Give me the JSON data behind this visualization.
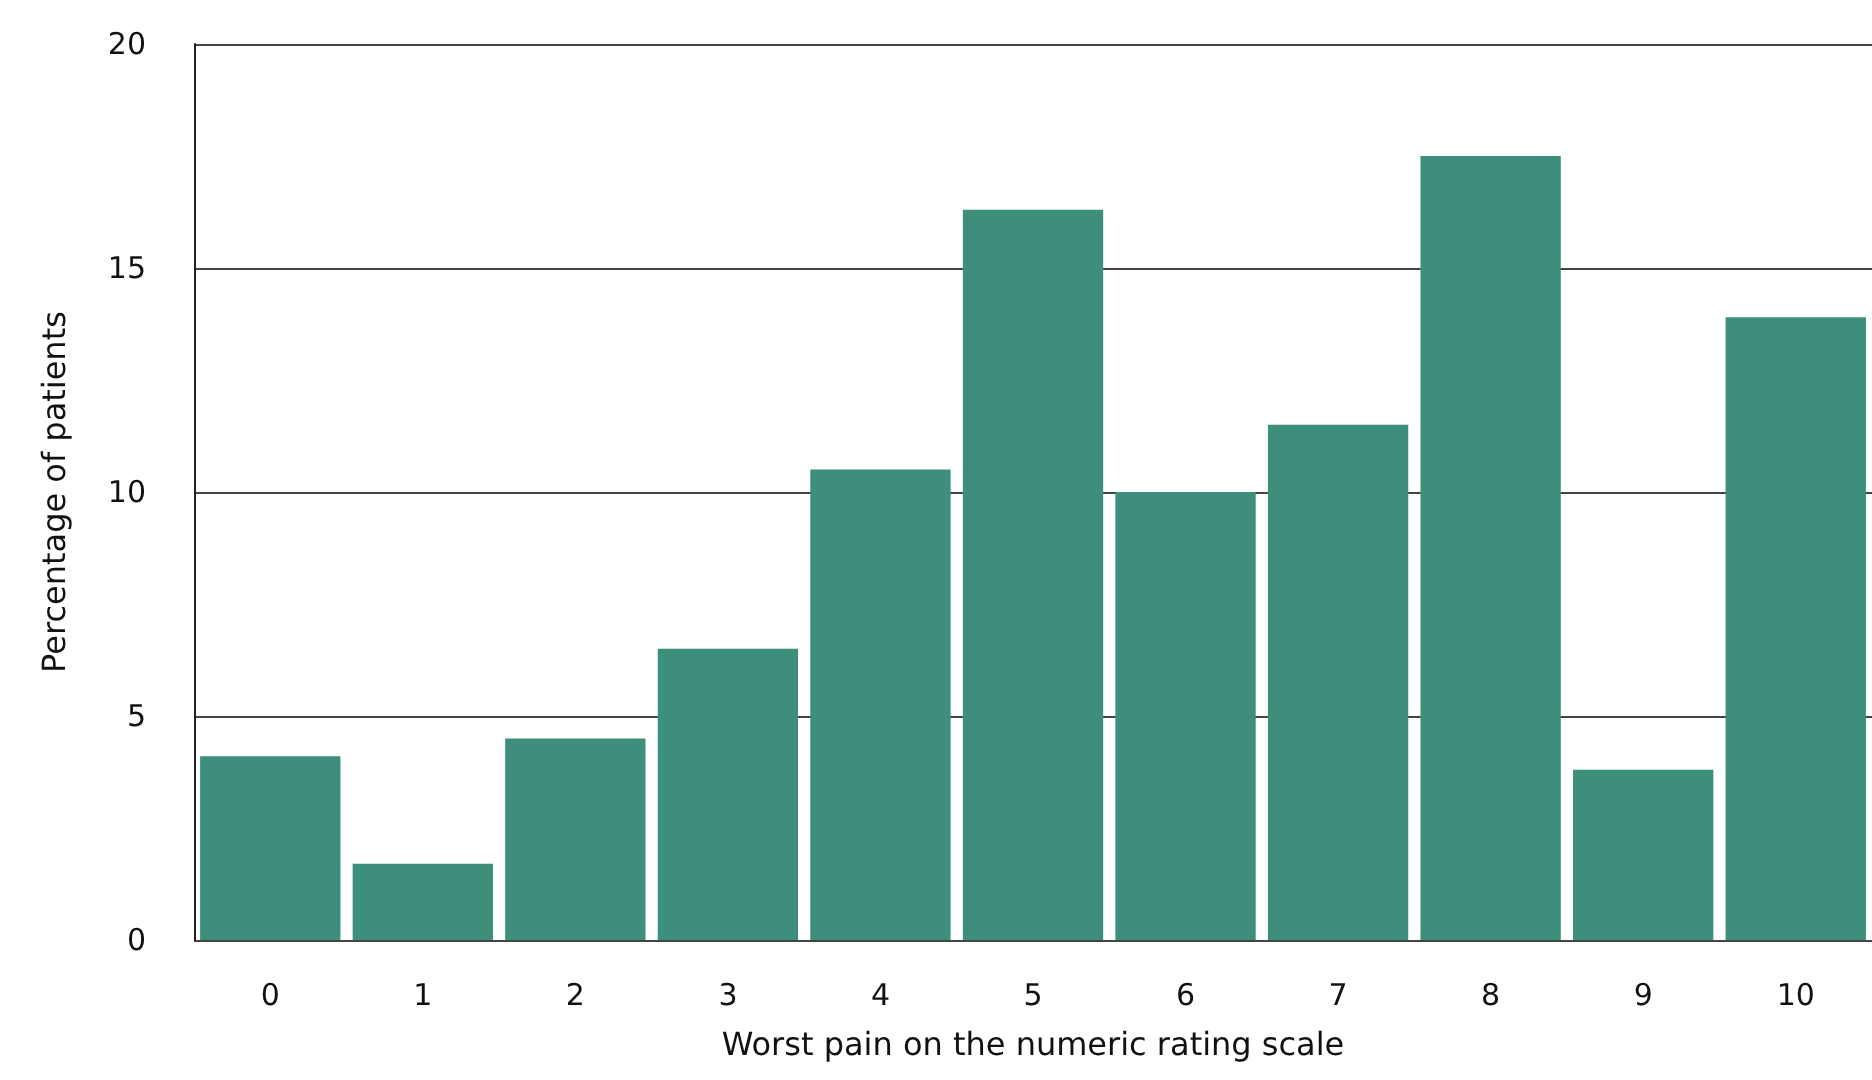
{
  "chart_data": {
    "type": "bar",
    "xlabel": "Worst pain on the numeric rating scale",
    "ylabel": "Percentage of patients",
    "categories": [
      "0",
      "1",
      "2",
      "3",
      "4",
      "5",
      "6",
      "7",
      "8",
      "9",
      "10"
    ],
    "values": [
      4.1,
      1.7,
      4.5,
      6.5,
      10.5,
      16.3,
      10.0,
      11.5,
      17.5,
      3.8,
      13.9
    ],
    "color": "#3d8f7c",
    "ylim": [
      0,
      20
    ],
    "yticks": [
      0,
      5,
      10,
      15,
      20
    ],
    "grid": "y"
  }
}
